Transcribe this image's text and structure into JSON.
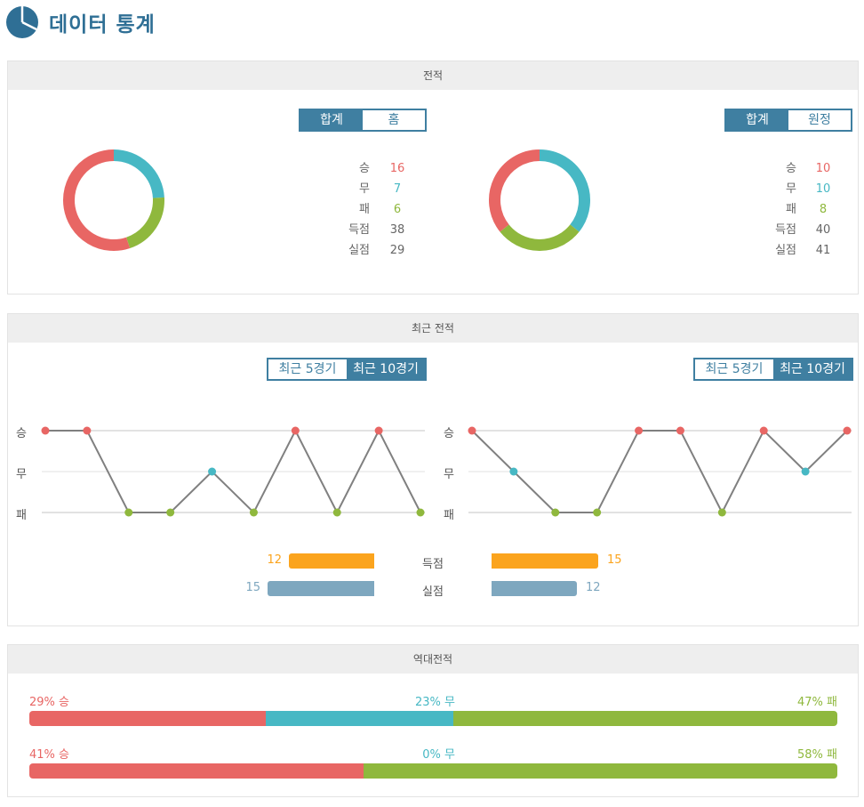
{
  "header": {
    "title": "데이터 통계",
    "icon": "pie-chart-icon"
  },
  "colors": {
    "win": "#e86664",
    "draw": "#47b8c4",
    "loss": "#8fb83d",
    "accent": "#3f7fa1",
    "scored": "#fba41e",
    "conceded": "#7ea7bf"
  },
  "record": {
    "title": "전적",
    "left": {
      "toggle": [
        "합계",
        "홈"
      ],
      "active": 0,
      "labels": [
        "승",
        "무",
        "패",
        "득점",
        "실점"
      ],
      "values": {
        "win": 16,
        "draw": 7,
        "loss": 6,
        "scored": 38,
        "conceded": 29
      }
    },
    "right": {
      "toggle": [
        "합계",
        "원정"
      ],
      "active": 0,
      "labels": [
        "승",
        "무",
        "패",
        "득점",
        "실점"
      ],
      "values": {
        "win": 10,
        "draw": 10,
        "loss": 8,
        "scored": 40,
        "conceded": 41
      }
    }
  },
  "recent": {
    "title": "최근 전적",
    "toggle": [
      "최근 5경기",
      "최근 10경기"
    ],
    "active": 1,
    "levels": [
      "승",
      "무",
      "패"
    ],
    "goal_labels": [
      "득점",
      "실점"
    ],
    "left": {
      "results": [
        "W",
        "W",
        "L",
        "L",
        "D",
        "L",
        "W",
        "L",
        "W",
        "L"
      ],
      "scored": 12,
      "conceded": 15
    },
    "right": {
      "results": [
        "W",
        "D",
        "L",
        "L",
        "W",
        "W",
        "L",
        "W",
        "D",
        "W"
      ],
      "scored": 15,
      "conceded": 12
    }
  },
  "h2h": {
    "title": "역대전적",
    "rows": [
      {
        "win": 29,
        "draw": 23,
        "loss": 47,
        "win_label": "29% 승",
        "draw_label": "23% 무",
        "loss_label": "47% 패"
      },
      {
        "win": 41,
        "draw": 0,
        "loss": 58,
        "win_label": "41% 승",
        "draw_label": "0% 무",
        "loss_label": "58% 패"
      }
    ]
  }
}
